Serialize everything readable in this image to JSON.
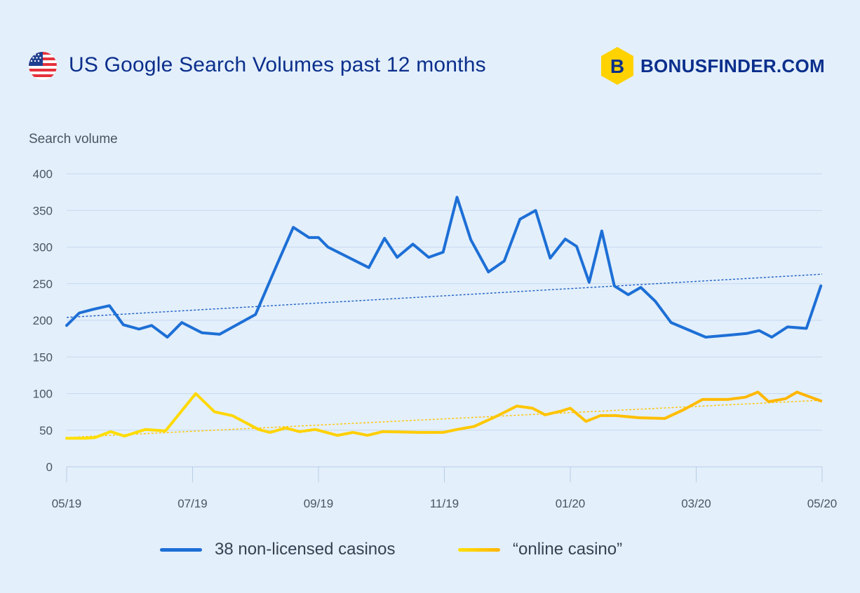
{
  "header": {
    "title": "US Google Search Volumes past 12 months",
    "flag_icon": "us-flag-icon",
    "brand_name": "BONUSFINDER.COM",
    "brand_letter": "B",
    "brand_color": "#ffd200",
    "brand_text_color": "#0b2f8c"
  },
  "colors": {
    "background": "#e3effb",
    "grid": "#c6d9ee",
    "series_blue": "#1d6fd6",
    "series_yellow_start": "#ffe000",
    "series_yellow_end": "#ffb400"
  },
  "chart_data": {
    "type": "line",
    "ylabel": "Search volume",
    "ylim": [
      0,
      400
    ],
    "y_ticks": [
      0,
      50,
      100,
      150,
      200,
      250,
      300,
      350,
      400
    ],
    "x_tick_labels": [
      "05/19",
      "07/19",
      "09/19",
      "11/19",
      "01/20",
      "03/20",
      "05/20"
    ],
    "x_tick_positions": [
      0,
      2,
      4,
      6,
      8,
      10,
      12
    ],
    "grid": true,
    "legend_position": "bottom",
    "series": [
      {
        "name": "38 non-licensed casinos",
        "color": "#1d6fd6",
        "trend": [
          204,
          263
        ],
        "x": [
          0,
          0.2,
          0.42,
          0.68,
          0.9,
          1.15,
          1.35,
          1.6,
          1.83,
          2.15,
          2.43,
          3.0,
          3.35,
          3.6,
          3.85,
          4.0,
          4.15,
          4.8,
          5.05,
          5.25,
          5.5,
          5.75,
          5.98,
          6.2,
          6.42,
          6.7,
          6.95,
          7.2,
          7.45,
          7.68,
          7.92,
          8.1,
          8.3,
          8.5,
          8.7,
          8.92,
          9.12,
          9.35,
          9.6,
          10.15,
          10.55,
          10.8,
          11.0,
          11.2,
          11.45,
          11.75,
          11.98
        ],
        "y": [
          193,
          210,
          215,
          220,
          194,
          188,
          193,
          177,
          197,
          183,
          181,
          208,
          278,
          327,
          313,
          313,
          300,
          272,
          312,
          286,
          304,
          286,
          293,
          368,
          310,
          266,
          281,
          338,
          350,
          285,
          311,
          301,
          252,
          322,
          247,
          235,
          245,
          226,
          197,
          177,
          180,
          182,
          186,
          177,
          191,
          189,
          247
        ]
      },
      {
        "name": "“online casino”",
        "color": "#ffc400",
        "trend": [
          40,
          91
        ],
        "x": [
          0,
          0.3,
          0.45,
          0.7,
          0.92,
          1.25,
          1.57,
          2.05,
          2.35,
          2.63,
          3.05,
          3.23,
          3.48,
          3.7,
          3.95,
          4.3,
          4.55,
          4.78,
          5.02,
          5.6,
          5.98,
          6.2,
          6.47,
          6.85,
          7.15,
          7.4,
          7.6,
          7.85,
          8.0,
          8.25,
          8.48,
          8.72,
          9.1,
          9.5,
          9.8,
          10.1,
          10.5,
          10.78,
          10.98,
          11.15,
          11.42,
          11.6,
          11.98
        ],
        "y": [
          39,
          39,
          40,
          48,
          42,
          51,
          49,
          100,
          75,
          70,
          51,
          47,
          53,
          48,
          51,
          43,
          47,
          43,
          48,
          47,
          47,
          51,
          55,
          70,
          83,
          80,
          71,
          76,
          80,
          62,
          70,
          70,
          67,
          66,
          78,
          92,
          92,
          95,
          102,
          89,
          93,
          102,
          90
        ]
      }
    ]
  }
}
